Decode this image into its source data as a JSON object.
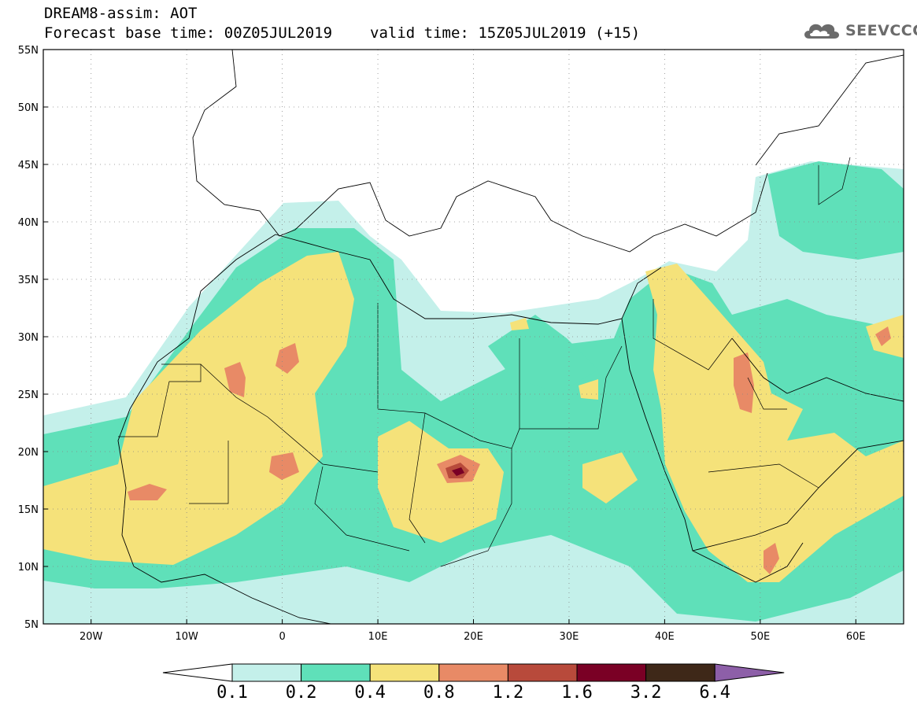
{
  "header": {
    "model_line": "DREAM8-assim: AOT",
    "forecast_base": "Forecast base time: 00Z05JUL2019",
    "valid_time": "valid time: 15Z05JUL2019 (+15)"
  },
  "logo": {
    "text": "SEEVCCC",
    "icon": "cloud-icon"
  },
  "map": {
    "projection": "equirectangular",
    "lon_range": [
      -25,
      65
    ],
    "lat_range": [
      5,
      55
    ],
    "gridlines": "dotted",
    "lat_labels": [
      "55N",
      "50N",
      "45N",
      "40N",
      "35N",
      "30N",
      "25N",
      "20N",
      "15N",
      "10N",
      "5N"
    ],
    "lon_labels": [
      "20W",
      "10W",
      "0",
      "10E",
      "20E",
      "30E",
      "40E",
      "50E",
      "60E"
    ]
  },
  "colorbar": {
    "boundaries": [
      "0.1",
      "0.2",
      "0.4",
      "0.8",
      "1.2",
      "1.6",
      "3.2",
      "6.4"
    ],
    "colors": [
      "#ffffff",
      "#c4f0ea",
      "#5fe0b9",
      "#f5e27a",
      "#e88a66",
      "#b84a3b",
      "#7a0025",
      "#3e2818",
      "#8d5fa8"
    ]
  }
}
